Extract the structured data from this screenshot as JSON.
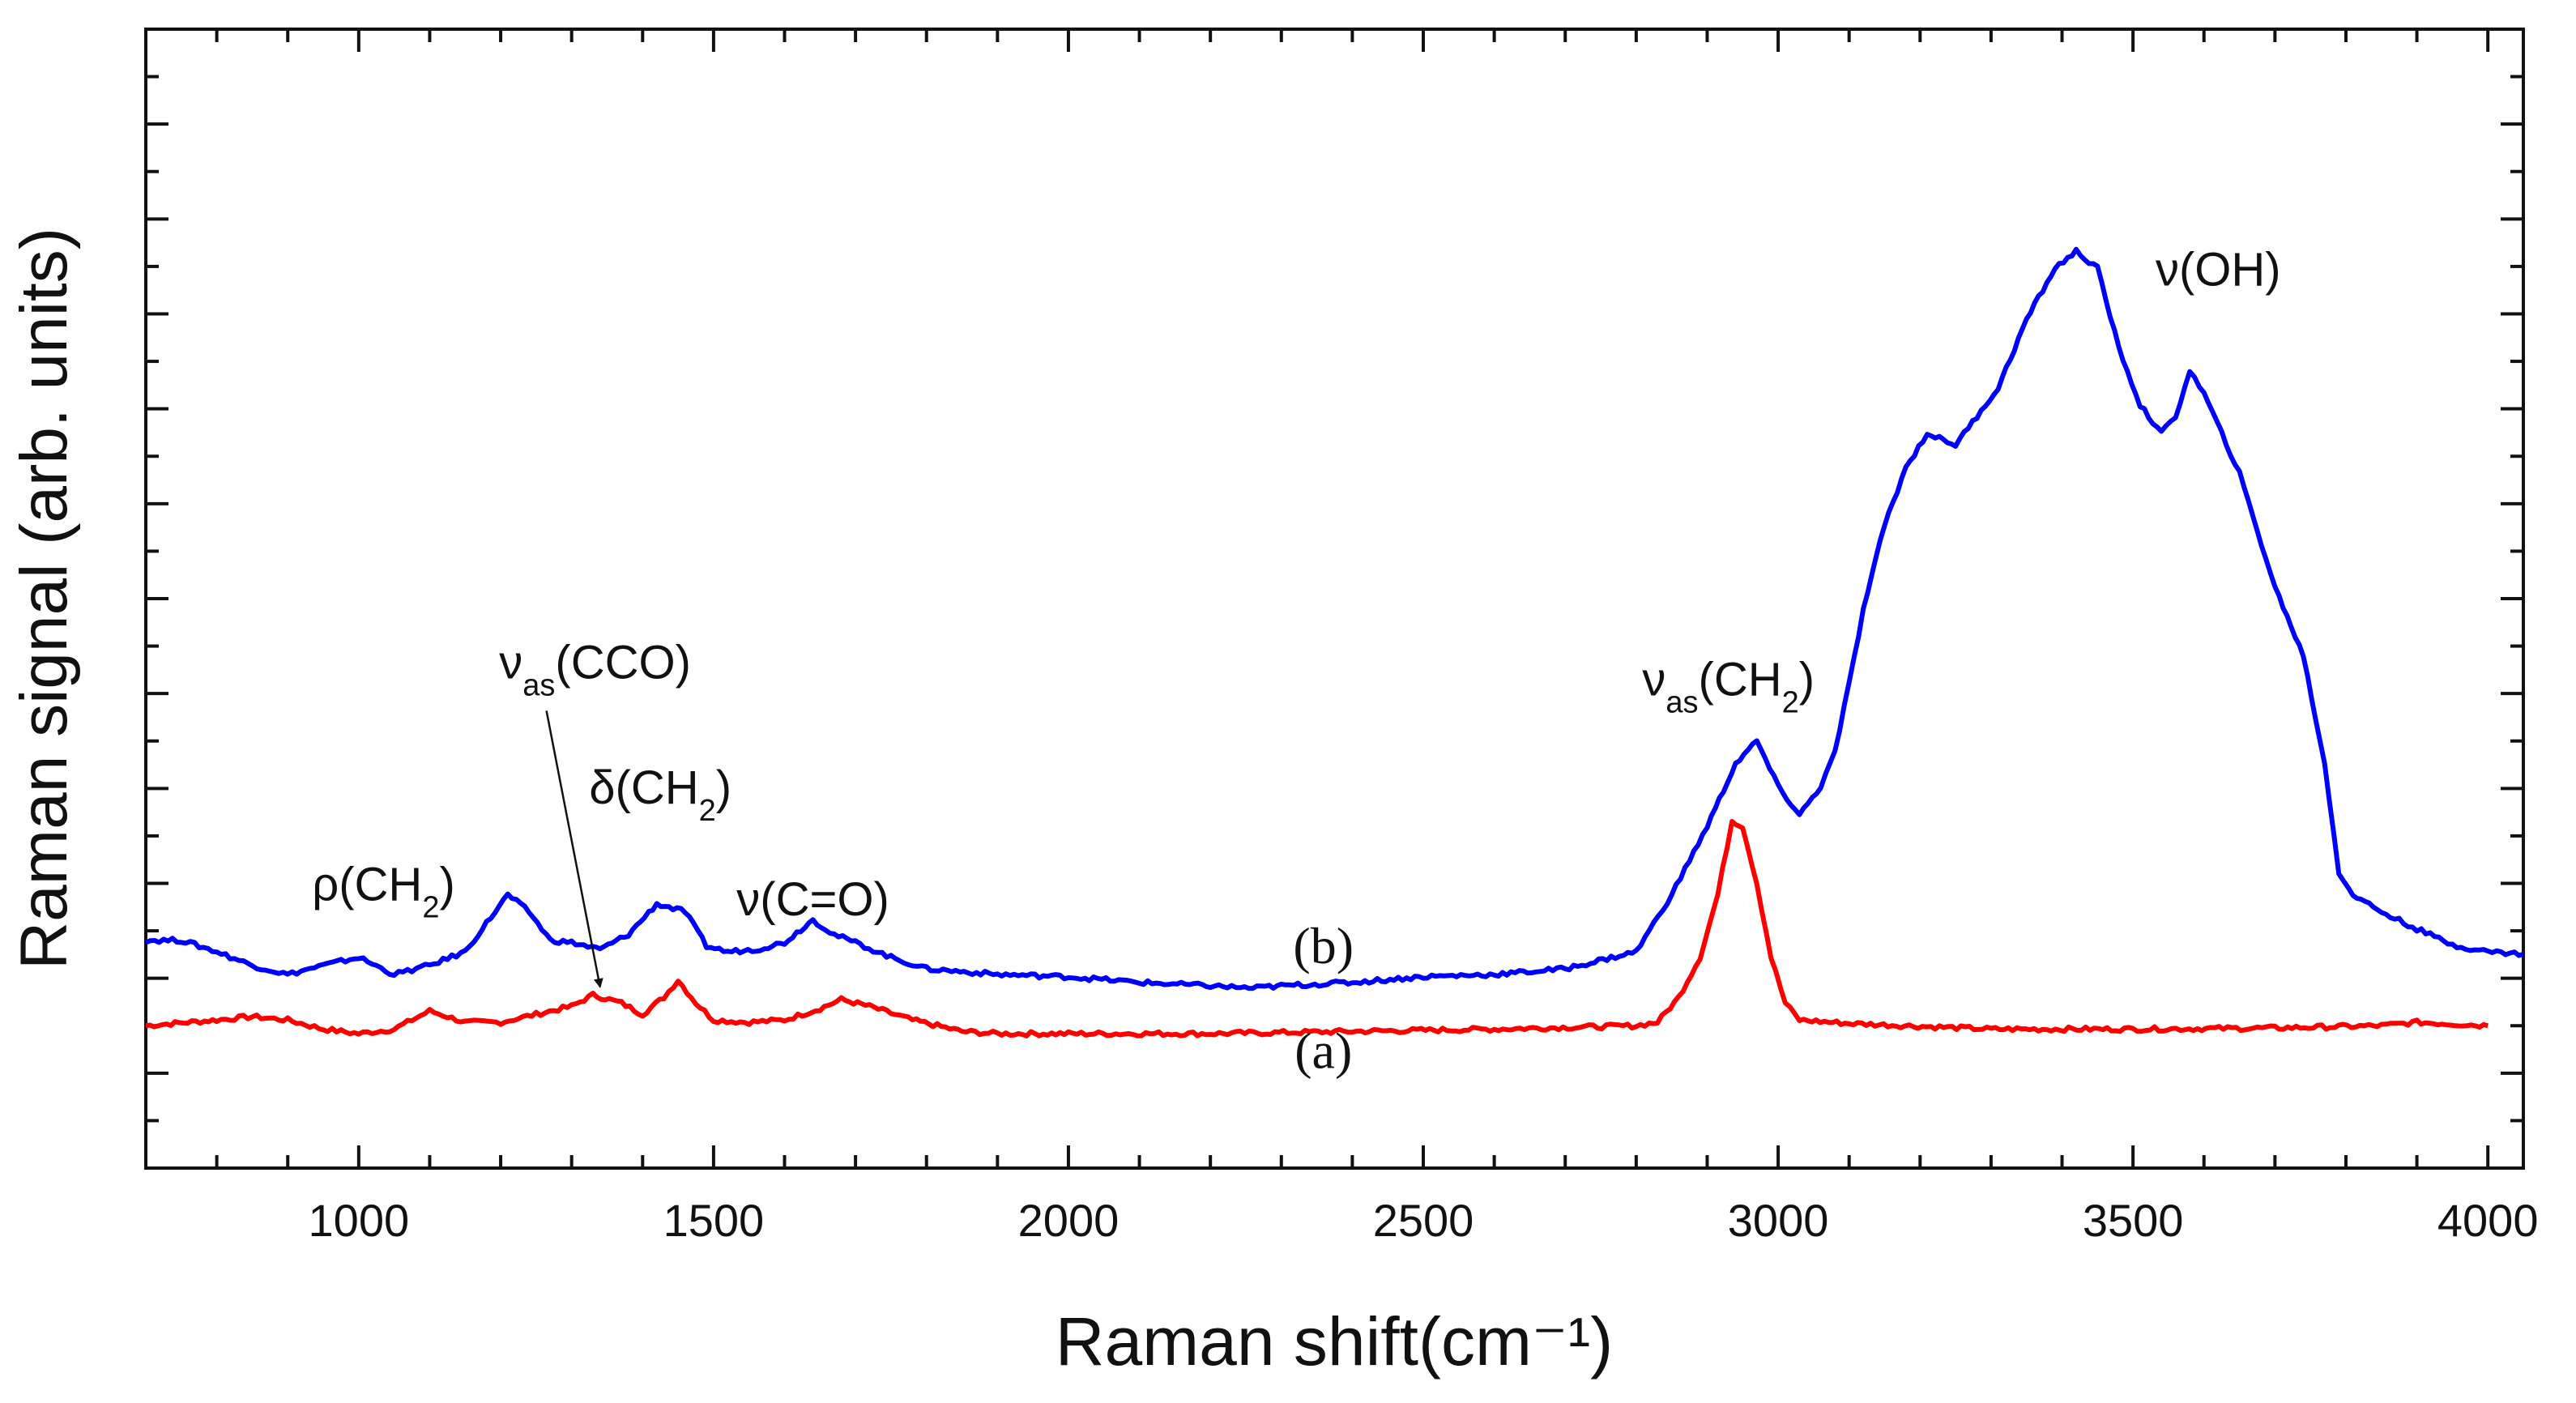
{
  "chart_data": {
    "type": "line",
    "title": "",
    "xlabel": "Raman shift(cm⁻¹)",
    "ylabel": "Raman signal (arb. units)",
    "xlim": [
      700,
      4050
    ],
    "ylim": [
      0,
      1.0
    ],
    "x_tick_labels": [
      "1000",
      "1500",
      "2000",
      "2500",
      "3000",
      "3500",
      "4000"
    ],
    "x_ticks": [
      1000,
      1500,
      2000,
      2500,
      3000,
      3500,
      4000
    ],
    "y_tick_labels_shown": false,
    "grid": false,
    "series": [
      {
        "name": "(a)",
        "color": "#ff0000",
        "points": [
          [
            700,
            0.125
          ],
          [
            800,
            0.13
          ],
          [
            850,
            0.133
          ],
          [
            900,
            0.13
          ],
          [
            950,
            0.122
          ],
          [
            1000,
            0.118
          ],
          [
            1050,
            0.122
          ],
          [
            1100,
            0.138
          ],
          [
            1150,
            0.128
          ],
          [
            1200,
            0.128
          ],
          [
            1250,
            0.135
          ],
          [
            1300,
            0.142
          ],
          [
            1330,
            0.152
          ],
          [
            1370,
            0.145
          ],
          [
            1400,
            0.135
          ],
          [
            1430,
            0.15
          ],
          [
            1450,
            0.165
          ],
          [
            1475,
            0.145
          ],
          [
            1500,
            0.13
          ],
          [
            1550,
            0.128
          ],
          [
            1600,
            0.13
          ],
          [
            1650,
            0.14
          ],
          [
            1680,
            0.148
          ],
          [
            1720,
            0.142
          ],
          [
            1780,
            0.13
          ],
          [
            1850,
            0.12
          ],
          [
            1900,
            0.118
          ],
          [
            2000,
            0.118
          ],
          [
            2200,
            0.118
          ],
          [
            2400,
            0.12
          ],
          [
            2600,
            0.122
          ],
          [
            2800,
            0.125
          ],
          [
            2830,
            0.128
          ],
          [
            2860,
            0.15
          ],
          [
            2890,
            0.185
          ],
          [
            2915,
            0.24
          ],
          [
            2935,
            0.305
          ],
          [
            2950,
            0.3
          ],
          [
            2970,
            0.25
          ],
          [
            2990,
            0.185
          ],
          [
            3010,
            0.145
          ],
          [
            3030,
            0.13
          ],
          [
            3100,
            0.127
          ],
          [
            3300,
            0.122
          ],
          [
            3500,
            0.122
          ],
          [
            3700,
            0.123
          ],
          [
            3850,
            0.125
          ],
          [
            3900,
            0.128
          ],
          [
            4000,
            0.125
          ]
        ]
      },
      {
        "name": "(b)",
        "color": "#0000ff",
        "points": [
          [
            700,
            0.2
          ],
          [
            750,
            0.2
          ],
          [
            800,
            0.19
          ],
          [
            850,
            0.178
          ],
          [
            900,
            0.17
          ],
          [
            950,
            0.178
          ],
          [
            1000,
            0.185
          ],
          [
            1050,
            0.17
          ],
          [
            1100,
            0.178
          ],
          [
            1150,
            0.19
          ],
          [
            1180,
            0.215
          ],
          [
            1210,
            0.24
          ],
          [
            1240,
            0.225
          ],
          [
            1270,
            0.2
          ],
          [
            1300,
            0.198
          ],
          [
            1340,
            0.192
          ],
          [
            1380,
            0.205
          ],
          [
            1420,
            0.232
          ],
          [
            1460,
            0.225
          ],
          [
            1490,
            0.195
          ],
          [
            1520,
            0.19
          ],
          [
            1560,
            0.192
          ],
          [
            1600,
            0.198
          ],
          [
            1640,
            0.218
          ],
          [
            1670,
            0.205
          ],
          [
            1700,
            0.198
          ],
          [
            1750,
            0.185
          ],
          [
            1800,
            0.175
          ],
          [
            1900,
            0.17
          ],
          [
            2000,
            0.168
          ],
          [
            2100,
            0.163
          ],
          [
            2200,
            0.16
          ],
          [
            2260,
            0.158
          ],
          [
            2300,
            0.16
          ],
          [
            2400,
            0.163
          ],
          [
            2500,
            0.168
          ],
          [
            2600,
            0.17
          ],
          [
            2700,
            0.175
          ],
          [
            2800,
            0.19
          ],
          [
            2850,
            0.24
          ],
          [
            2900,
            0.3
          ],
          [
            2940,
            0.355
          ],
          [
            2970,
            0.375
          ],
          [
            3000,
            0.335
          ],
          [
            3030,
            0.31
          ],
          [
            3060,
            0.335
          ],
          [
            3080,
            0.365
          ],
          [
            3100,
            0.425
          ],
          [
            3120,
            0.49
          ],
          [
            3150,
            0.565
          ],
          [
            3180,
            0.615
          ],
          [
            3210,
            0.645
          ],
          [
            3250,
            0.635
          ],
          [
            3280,
            0.66
          ],
          [
            3310,
            0.685
          ],
          [
            3350,
            0.745
          ],
          [
            3390,
            0.79
          ],
          [
            3420,
            0.805
          ],
          [
            3450,
            0.79
          ],
          [
            3480,
            0.72
          ],
          [
            3510,
            0.67
          ],
          [
            3540,
            0.645
          ],
          [
            3560,
            0.66
          ],
          [
            3580,
            0.7
          ],
          [
            3600,
            0.68
          ],
          [
            3650,
            0.61
          ],
          [
            3700,
            0.51
          ],
          [
            3740,
            0.45
          ],
          [
            3770,
            0.355
          ],
          [
            3790,
            0.26
          ],
          [
            3810,
            0.24
          ],
          [
            3850,
            0.225
          ],
          [
            3900,
            0.21
          ],
          [
            3950,
            0.196
          ],
          [
            4000,
            0.19
          ],
          [
            4050,
            0.188
          ]
        ]
      }
    ],
    "annotations": [
      {
        "base": "ν",
        "sub": "as",
        "rest": "(CCO)",
        "x": 1333,
        "y": 0.43,
        "arrow_to": [
          1340,
          0.155
        ]
      },
      {
        "base": "δ(CH",
        "sub": "2",
        "rest": ")",
        "x": 1425,
        "y": 0.32
      },
      {
        "base": "ρ(CH",
        "sub": "2",
        "rest": ")",
        "x": 1035,
        "y": 0.235
      },
      {
        "base": "ν(C=O)",
        "sub": "",
        "rest": "",
        "x": 1640,
        "y": 0.222
      },
      {
        "base": "ν",
        "sub": "as",
        "rest": "(CH",
        "sub2": "2",
        "rest2": ")",
        "x": 2930,
        "y": 0.415
      },
      {
        "base": "ν(OH)",
        "sub": "",
        "rest": "",
        "x": 3620,
        "y": 0.775
      }
    ],
    "series_labels": [
      {
        "text": "(b)",
        "x": 2930,
        "y": 0.18
      },
      {
        "text": "(a)",
        "x": 2930,
        "y": 0.088
      }
    ]
  }
}
